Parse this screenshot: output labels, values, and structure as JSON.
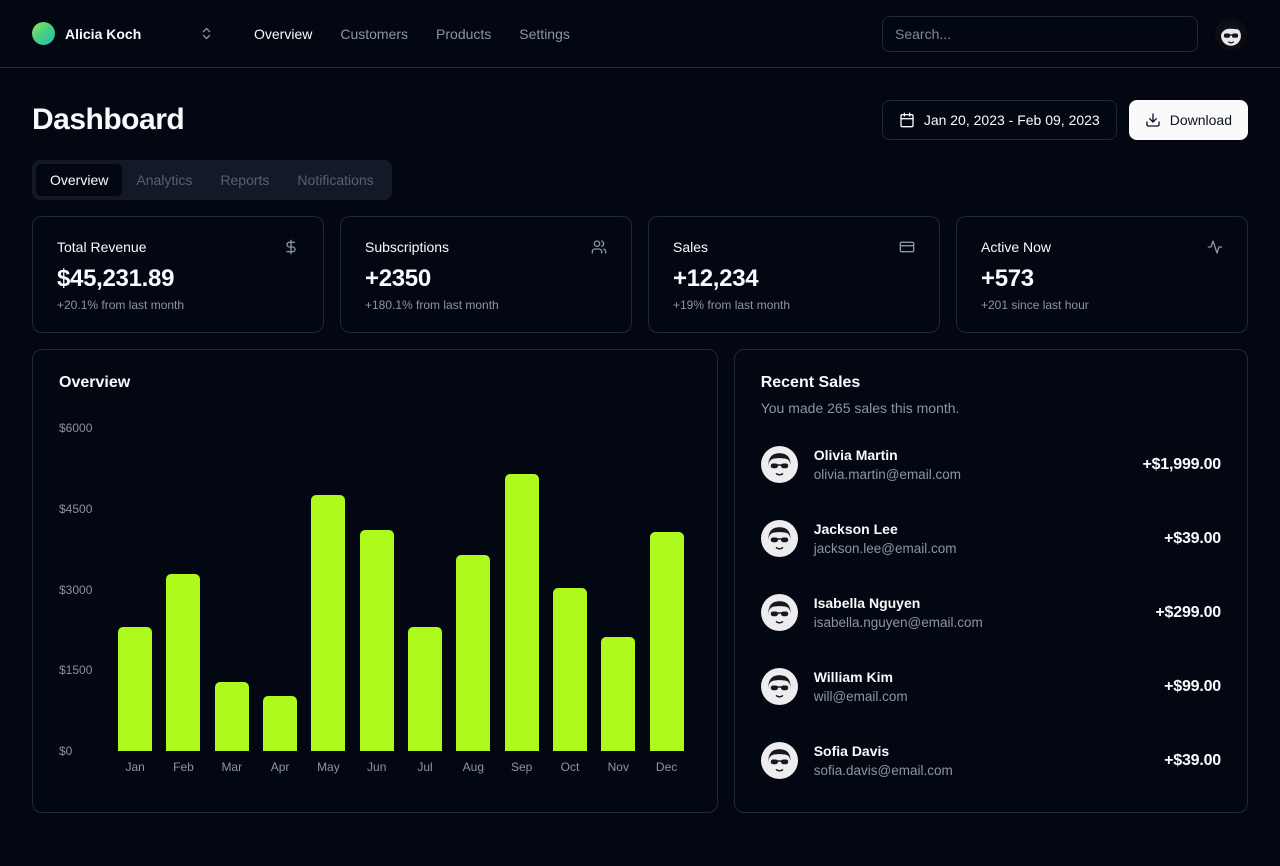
{
  "header": {
    "team_name": "Alicia Koch",
    "nav": [
      "Overview",
      "Customers",
      "Products",
      "Settings"
    ],
    "active_nav": "Overview",
    "search_placeholder": "Search..."
  },
  "page": {
    "title": "Dashboard",
    "date_range": "Jan 20, 2023 - Feb 09, 2023",
    "download_label": "Download",
    "tabs": [
      "Overview",
      "Analytics",
      "Reports",
      "Notifications"
    ],
    "active_tab": "Overview"
  },
  "stats": [
    {
      "title": "Total Revenue",
      "icon": "dollar-icon",
      "value": "$45,231.89",
      "change": "+20.1% from last month"
    },
    {
      "title": "Subscriptions",
      "icon": "users-icon",
      "value": "+2350",
      "change": "+180.1% from last month"
    },
    {
      "title": "Sales",
      "icon": "credit-card-icon",
      "value": "+12,234",
      "change": "+19% from last month"
    },
    {
      "title": "Active Now",
      "icon": "activity-icon",
      "value": "+573",
      "change": "+201 since last hour"
    }
  ],
  "chart_data": {
    "type": "bar",
    "title": "Overview",
    "categories": [
      "Jan",
      "Feb",
      "Mar",
      "Apr",
      "May",
      "Jun",
      "Jul",
      "Aug",
      "Sep",
      "Oct",
      "Nov",
      "Dec"
    ],
    "values": [
      2300,
      3290,
      1290,
      1030,
      4750,
      4100,
      2300,
      3640,
      5140,
      3030,
      2120,
      4070
    ],
    "ytick_labels": [
      "$0",
      "$1500",
      "$3000",
      "$4500",
      "$6000"
    ],
    "ylim": [
      0,
      6000
    ],
    "grid": false,
    "legend": false,
    "bar_color": "#adfa1d"
  },
  "recent_sales": {
    "title": "Recent Sales",
    "subtitle": "You made 265 sales this month.",
    "items": [
      {
        "name": "Olivia Martin",
        "email": "olivia.martin@email.com",
        "amount": "+$1,999.00"
      },
      {
        "name": "Jackson Lee",
        "email": "jackson.lee@email.com",
        "amount": "+$39.00"
      },
      {
        "name": "Isabella Nguyen",
        "email": "isabella.nguyen@email.com",
        "amount": "+$299.00"
      },
      {
        "name": "William Kim",
        "email": "will@email.com",
        "amount": "+$99.00"
      },
      {
        "name": "Sofia Davis",
        "email": "sofia.davis@email.com",
        "amount": "+$39.00"
      }
    ]
  },
  "colors": {
    "accent": "#adfa1d",
    "background": "#030711",
    "border": "#1d283a",
    "muted_text": "#8b95a8"
  }
}
